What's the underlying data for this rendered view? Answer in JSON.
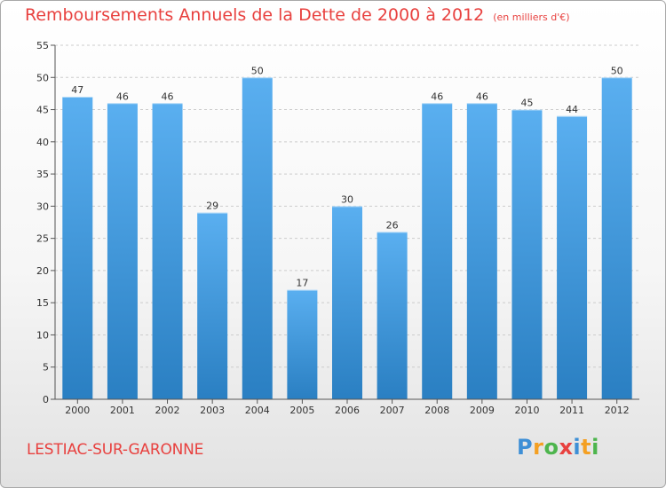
{
  "title": "Remboursements Annuels de la Dette de 2000 à 2012",
  "subtitle": "(en milliers d'€)",
  "town": "LESTIAC-SUR-GARONNE",
  "logo": {
    "letters": [
      "P",
      "r",
      "o",
      "x",
      "i",
      "t",
      "i"
    ],
    "colors": [
      "#3e8fd6",
      "#f4a023",
      "#4db54d",
      "#e8413f",
      "#3e8fd6",
      "#f4a023",
      "#4db54d"
    ]
  },
  "colors": {
    "title": "#e8413f",
    "bar_light": "#5aaff0",
    "bar_dark": "#2a7fc2",
    "axis": "#555555",
    "grid": "#cccccc"
  },
  "chart_data": {
    "type": "bar",
    "title": "Remboursements Annuels de la Dette de 2000 à 2012",
    "subtitle": "(en milliers d'€)",
    "categories": [
      "2000",
      "2001",
      "2002",
      "2003",
      "2004",
      "2005",
      "2006",
      "2007",
      "2008",
      "2009",
      "2010",
      "2011",
      "2012"
    ],
    "values": [
      47,
      46,
      46,
      29,
      50,
      17,
      30,
      26,
      46,
      46,
      45,
      44,
      50
    ],
    "ylim": [
      0,
      55
    ],
    "yticks": [
      0,
      5,
      10,
      15,
      20,
      25,
      30,
      35,
      40,
      45,
      50,
      55
    ],
    "grid": true,
    "data_labels": true
  }
}
